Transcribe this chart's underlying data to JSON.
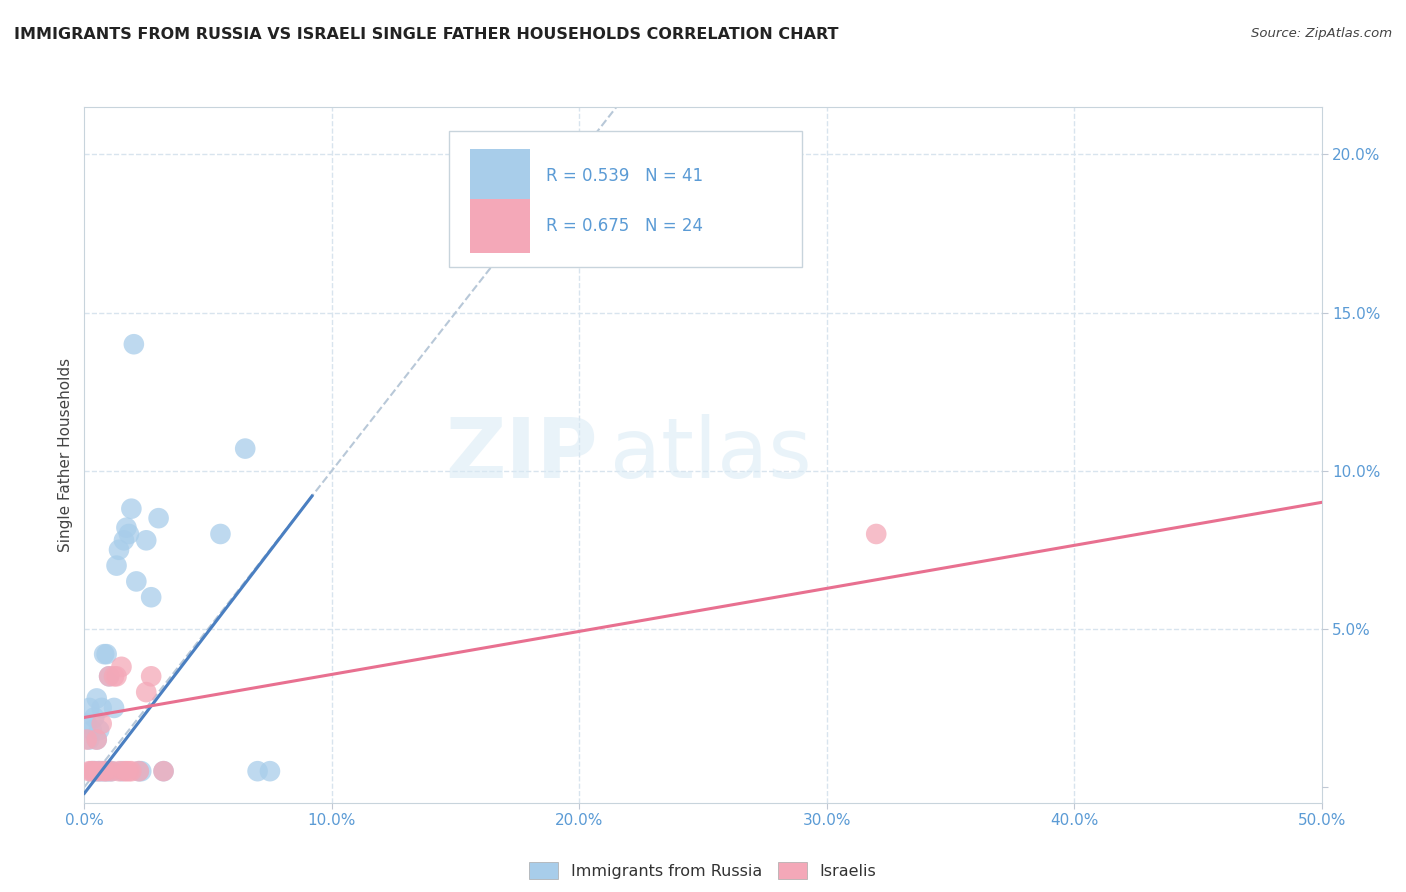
{
  "title": "IMMIGRANTS FROM RUSSIA VS ISRAELI SINGLE FATHER HOUSEHOLDS CORRELATION CHART",
  "source": "Source: ZipAtlas.com",
  "ylabel": "Single Father Households",
  "xlim": [
    0.0,
    0.5
  ],
  "ylim": [
    -0.005,
    0.215
  ],
  "xticks": [
    0.0,
    0.1,
    0.2,
    0.3,
    0.4,
    0.5
  ],
  "xticklabels": [
    "0.0%",
    "10.0%",
    "20.0%",
    "30.0%",
    "40.0%",
    "50.0%"
  ],
  "yticks_right": [
    0.0,
    0.05,
    0.1,
    0.15,
    0.2
  ],
  "yticklabels_right": [
    "",
    "5.0%",
    "10.0%",
    "15.0%",
    "20.0%"
  ],
  "legend_r1": "R = 0.539",
  "legend_n1": "N = 41",
  "legend_r2": "R = 0.675",
  "legend_n2": "N = 24",
  "legend_label1": "Immigrants from Russia",
  "legend_label2": "Israelis",
  "color_blue": "#A8CDEA",
  "color_pink": "#F4A8B8",
  "color_blue_line": "#4A7FC1",
  "color_pink_line": "#E87090",
  "color_diag": "#B8C8D8",
  "watermark_zip": "ZIP",
  "watermark_atlas": "atlas",
  "blue_scatter_x": [
    0.001,
    0.002,
    0.002,
    0.003,
    0.003,
    0.004,
    0.004,
    0.005,
    0.005,
    0.005,
    0.006,
    0.006,
    0.007,
    0.007,
    0.008,
    0.008,
    0.009,
    0.009,
    0.01,
    0.01,
    0.011,
    0.012,
    0.013,
    0.014,
    0.015,
    0.016,
    0.017,
    0.018,
    0.019,
    0.02,
    0.021,
    0.022,
    0.023,
    0.025,
    0.027,
    0.03,
    0.032,
    0.055,
    0.065,
    0.07,
    0.075
  ],
  "blue_scatter_y": [
    0.02,
    0.015,
    0.025,
    0.005,
    0.018,
    0.005,
    0.022,
    0.005,
    0.015,
    0.028,
    0.005,
    0.018,
    0.005,
    0.025,
    0.005,
    0.042,
    0.042,
    0.005,
    0.005,
    0.035,
    0.005,
    0.025,
    0.07,
    0.075,
    0.005,
    0.078,
    0.082,
    0.08,
    0.088,
    0.14,
    0.065,
    0.005,
    0.005,
    0.078,
    0.06,
    0.085,
    0.005,
    0.08,
    0.107,
    0.005,
    0.005
  ],
  "pink_scatter_x": [
    0.001,
    0.002,
    0.003,
    0.004,
    0.005,
    0.006,
    0.007,
    0.008,
    0.009,
    0.01,
    0.011,
    0.012,
    0.013,
    0.014,
    0.015,
    0.016,
    0.017,
    0.018,
    0.019,
    0.022,
    0.025,
    0.027,
    0.032,
    0.32
  ],
  "pink_scatter_y": [
    0.015,
    0.005,
    0.005,
    0.005,
    0.015,
    0.005,
    0.02,
    0.005,
    0.005,
    0.035,
    0.005,
    0.035,
    0.035,
    0.005,
    0.038,
    0.005,
    0.005,
    0.005,
    0.005,
    0.005,
    0.03,
    0.035,
    0.005,
    0.08
  ],
  "blue_line_x": [
    0.0,
    0.092
  ],
  "blue_line_y": [
    -0.002,
    0.092
  ],
  "pink_line_x": [
    0.0,
    0.5
  ],
  "pink_line_y": [
    0.022,
    0.09
  ],
  "diag_line_x": [
    0.0,
    0.215
  ],
  "diag_line_y": [
    0.0,
    0.215
  ],
  "background_color": "#FFFFFF",
  "grid_color": "#D8E4EE"
}
